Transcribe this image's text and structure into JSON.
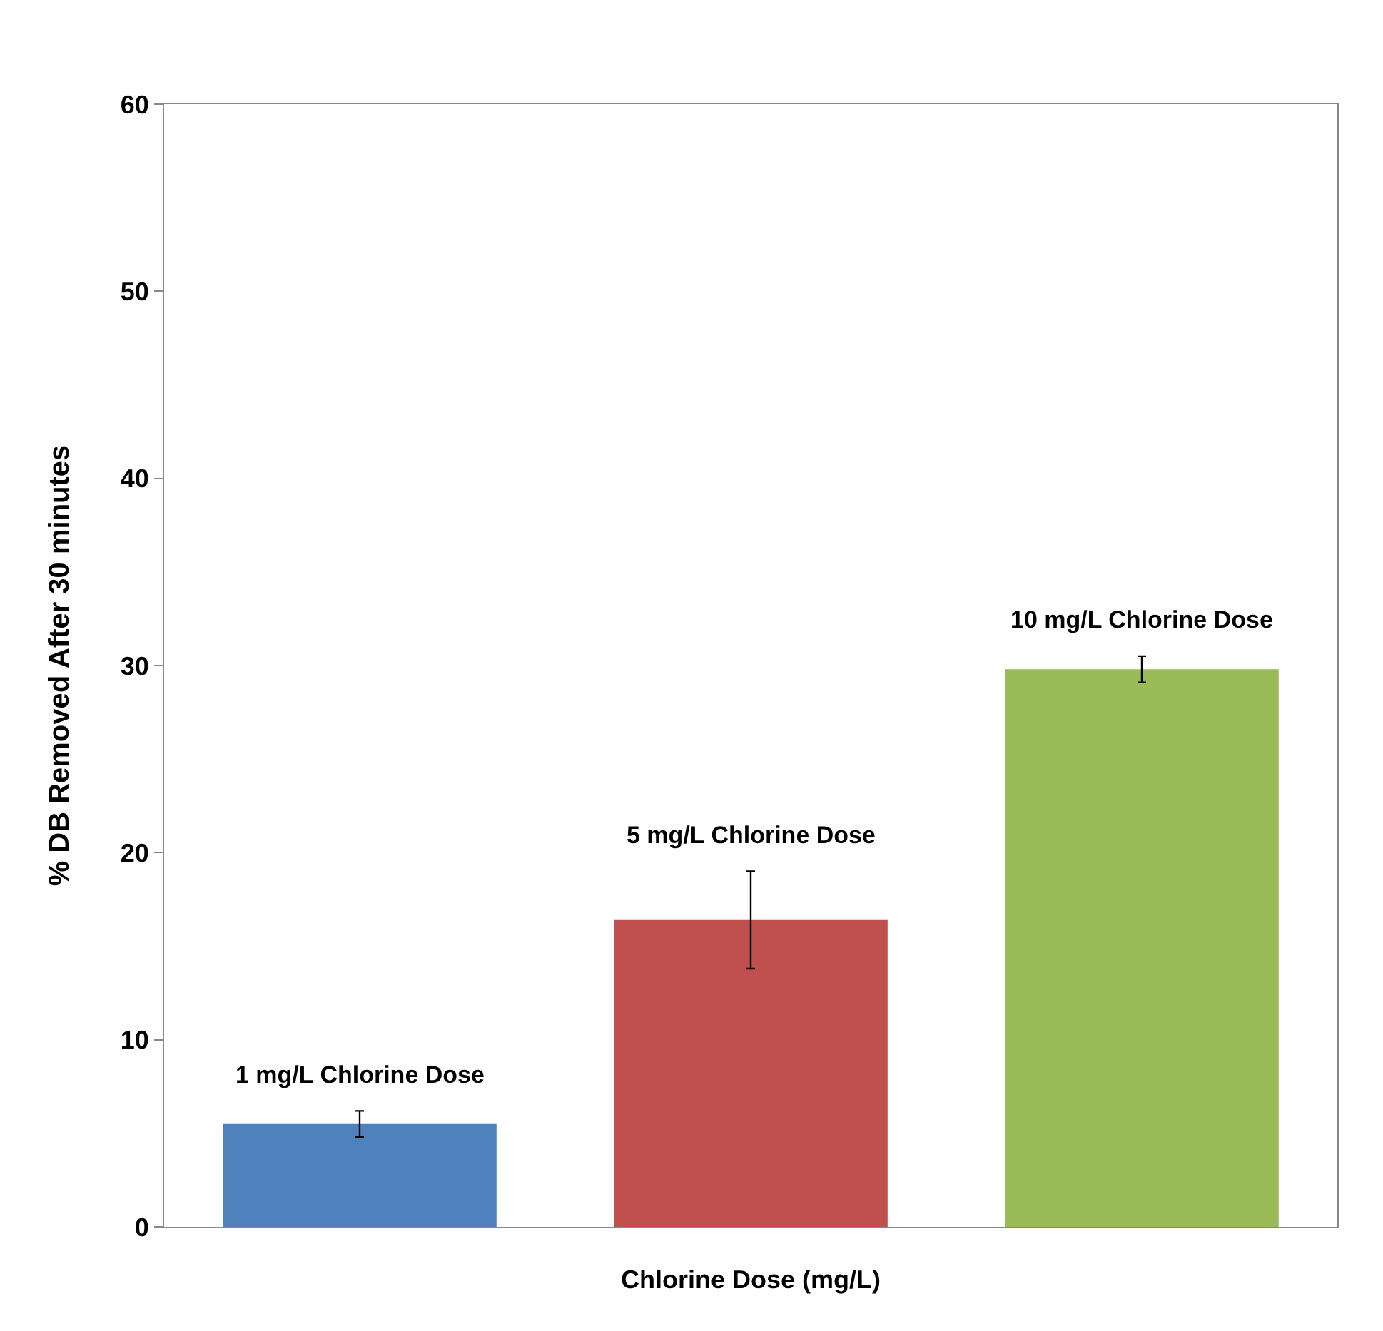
{
  "chart_data": {
    "type": "bar",
    "xlabel": "Chlorine Dose (mg/L)",
    "ylabel": "% DB Removed After 30 minutes",
    "categories": [
      null,
      null,
      null
    ],
    "series": [
      {
        "name": "1 mg/L Chlorine Dose",
        "color": "#4f81bd",
        "values": [
          5.5,
          null,
          null
        ],
        "errors": [
          0.7,
          null,
          null
        ]
      },
      {
        "name": "5 mg/L Chlorine Dose",
        "color": "#c0504d",
        "values": [
          null,
          16.4,
          null
        ],
        "errors": [
          null,
          2.6,
          null
        ]
      },
      {
        "name": "10 mg/L Chlorine Dose",
        "color": "#9bbb59",
        "values": [
          null,
          null,
          29.8
        ],
        "errors": [
          null,
          null,
          0.7
        ]
      }
    ],
    "ylim": [
      0,
      60
    ],
    "yticks": [
      0,
      10,
      20,
      30,
      40,
      50,
      60
    ],
    "grid": false,
    "legend": false
  }
}
